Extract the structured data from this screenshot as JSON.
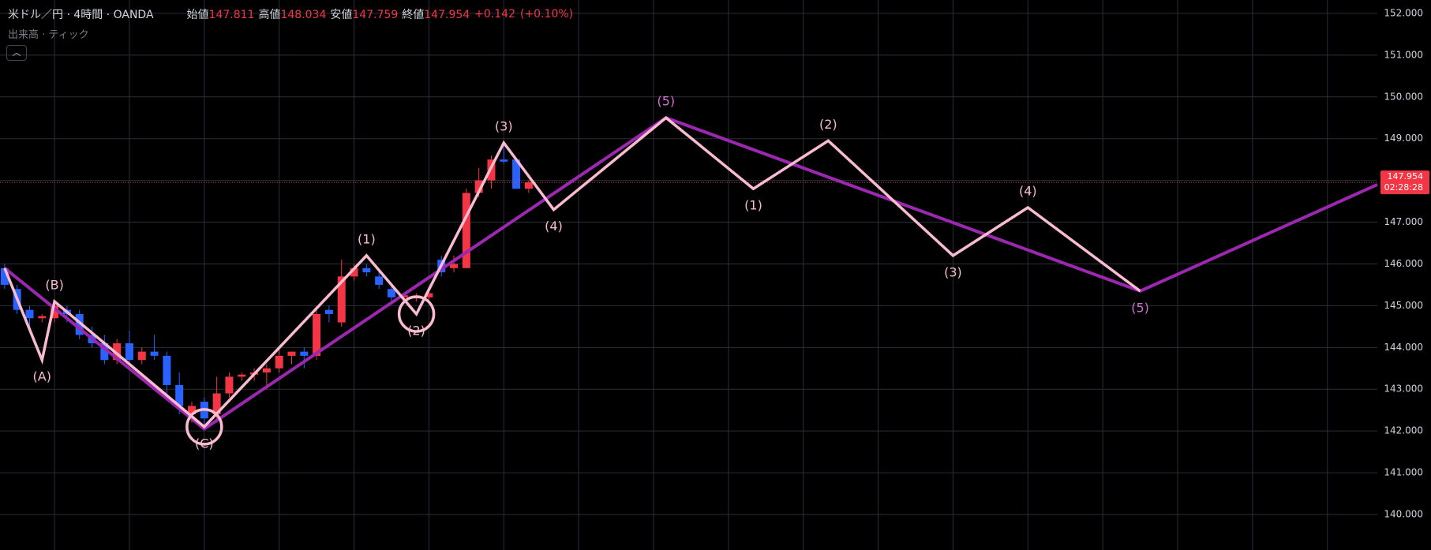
{
  "chart_data": {
    "type": "candlestick",
    "title": "米ドル／円 · 4時間 · OANDA",
    "indicator": "出来高 · ティック",
    "ohlc": [
      {
        "label": "始値",
        "value": 147.811
      },
      {
        "label": "高値",
        "value": 148.034
      },
      {
        "label": "安値",
        "value": 147.759
      },
      {
        "label": "終値",
        "value": 147.954
      }
    ],
    "change": {
      "value": 0.142,
      "label": "+0.142"
    },
    "change_pct": {
      "value": 0.1,
      "label": "(+0.10%)"
    },
    "countdown": "02:28:28",
    "up_color": "#f23645",
    "down_color": "#2962ff",
    "xlim": [
      -0.37,
      110
    ],
    "ylim": [
      139.15,
      152.32
    ],
    "yticks": [
      {
        "value": 140,
        "label": "140.000"
      },
      {
        "value": 141,
        "label": "141.000"
      },
      {
        "value": 142,
        "label": "142.000"
      },
      {
        "value": 143,
        "label": "143.000"
      },
      {
        "value": 144,
        "label": "144.000"
      },
      {
        "value": 145,
        "label": "145.000"
      },
      {
        "value": 146,
        "label": "146.000"
      },
      {
        "value": 147,
        "label": "147.000"
      },
      {
        "value": 148,
        "label": "148.000"
      },
      {
        "value": 149,
        "label": "149.000"
      },
      {
        "value": 150,
        "label": "150.000"
      },
      {
        "value": 151,
        "label": "151.000"
      },
      {
        "value": 152,
        "label": "152.000"
      }
    ],
    "grid": true,
    "open": [
      145.9,
      145.4,
      144.9,
      144.7,
      144.7,
      144.9,
      144.8,
      144.3,
      144.1,
      143.7,
      144.1,
      143.7,
      143.9,
      143.8,
      143.1,
      142.4,
      142.7,
      142.4,
      142.9,
      143.3,
      143.35,
      143.4,
      143.5,
      143.8,
      143.9,
      143.8,
      144.9,
      144.6,
      145.7,
      145.9,
      145.7,
      145.4,
      145.2,
      145.2,
      145.2,
      146.1,
      145.9,
      145.9,
      147.7,
      148.0,
      148.5,
      148.5,
      147.8
    ],
    "high": [
      146.0,
      145.5,
      145.0,
      144.8,
      145.1,
      145.0,
      144.9,
      144.5,
      144.3,
      144.2,
      144.4,
      144.0,
      144.3,
      143.9,
      143.4,
      142.7,
      142.8,
      143.3,
      143.4,
      143.4,
      143.5,
      143.6,
      144.0,
      143.9,
      144.0,
      144.9,
      145.0,
      146.1,
      146.0,
      146.0,
      145.8,
      145.5,
      145.3,
      145.3,
      145.4,
      146.2,
      146.2,
      147.8,
      148.3,
      148.6,
      148.9,
      148.5,
      148.0
    ],
    "low": [
      145.4,
      144.8,
      144.5,
      144.6,
      144.6,
      144.6,
      144.2,
      144.0,
      143.6,
      143.6,
      143.6,
      143.6,
      143.7,
      142.9,
      142.4,
      142.2,
      142.1,
      142.2,
      142.8,
      143.2,
      143.2,
      143.0,
      143.4,
      143.6,
      143.5,
      143.7,
      144.6,
      144.5,
      145.6,
      145.7,
      145.4,
      145.1,
      145.1,
      145.1,
      145.1,
      145.7,
      145.8,
      145.9,
      147.6,
      147.8,
      148.4,
      147.8,
      147.7
    ],
    "close": [
      145.5,
      144.9,
      144.7,
      144.75,
      145.0,
      144.8,
      144.3,
      144.1,
      143.7,
      144.1,
      143.7,
      143.9,
      143.8,
      143.1,
      142.6,
      142.6,
      142.3,
      142.9,
      143.3,
      143.35,
      143.4,
      143.5,
      143.8,
      143.9,
      143.8,
      144.8,
      144.8,
      145.7,
      145.9,
      145.8,
      145.5,
      145.2,
      145.25,
      145.2,
      145.3,
      145.8,
      146.0,
      147.7,
      148.0,
      148.5,
      148.45,
      147.8,
      147.954
    ],
    "series": [
      {
        "color": "#f8bbd0",
        "x": [
          0,
          3,
          4,
          16,
          29,
          33,
          40,
          44,
          53,
          60,
          66,
          76,
          82,
          91
        ],
        "values": [
          145.9,
          143.7,
          145.1,
          142.1,
          146.2,
          144.8,
          148.9,
          147.3,
          149.5,
          147.8,
          148.95,
          146.2,
          147.35,
          145.35
        ],
        "labels": [
          null,
          "(A)",
          "(B)",
          "(C)",
          "(1)",
          "(2)",
          "(3)",
          "(4)",
          "(5)",
          "(1)",
          "(2)",
          "(3)",
          "(4)",
          "(5)"
        ]
      },
      {
        "color": "#9c27b0",
        "x": [
          0,
          16,
          53,
          91,
          110
        ],
        "values": [
          145.9,
          142.05,
          149.5,
          145.35,
          147.9
        ]
      }
    ]
  }
}
